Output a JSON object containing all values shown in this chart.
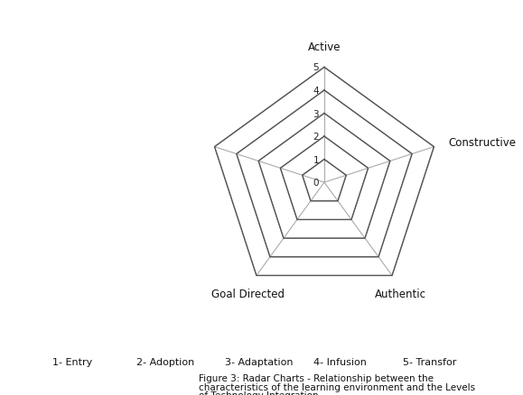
{
  "axes_labels": [
    "Active",
    "Constructive",
    "Authentic",
    "Goal Directed",
    ""
  ],
  "max_val": 5,
  "series": [
    [
      5,
      5,
      5,
      5,
      5
    ],
    [
      4,
      4,
      4,
      4,
      4
    ],
    [
      3,
      3,
      3,
      3,
      3
    ],
    [
      2,
      2,
      2,
      2,
      2
    ],
    [
      1,
      1,
      1,
      1,
      1
    ]
  ],
  "background_color": "#ffffff",
  "legend_labels": [
    "1- Entry",
    "2- Adoption",
    "3- Adaptation",
    "4- Infusion",
    "5- Transfor"
  ],
  "caption_line1": "Figure 3: Radar Charts - Relationship between the",
  "caption_line2": "characteristics of the learning environment and the Levels",
  "caption_line3": "of Technology Integration",
  "label_fontsize": 8.5,
  "tick_fontsize": 7.5,
  "caption_fontsize": 7.5,
  "legend_fontsize": 8,
  "grid_color": "#aaaaaa",
  "line_color": "#555555"
}
